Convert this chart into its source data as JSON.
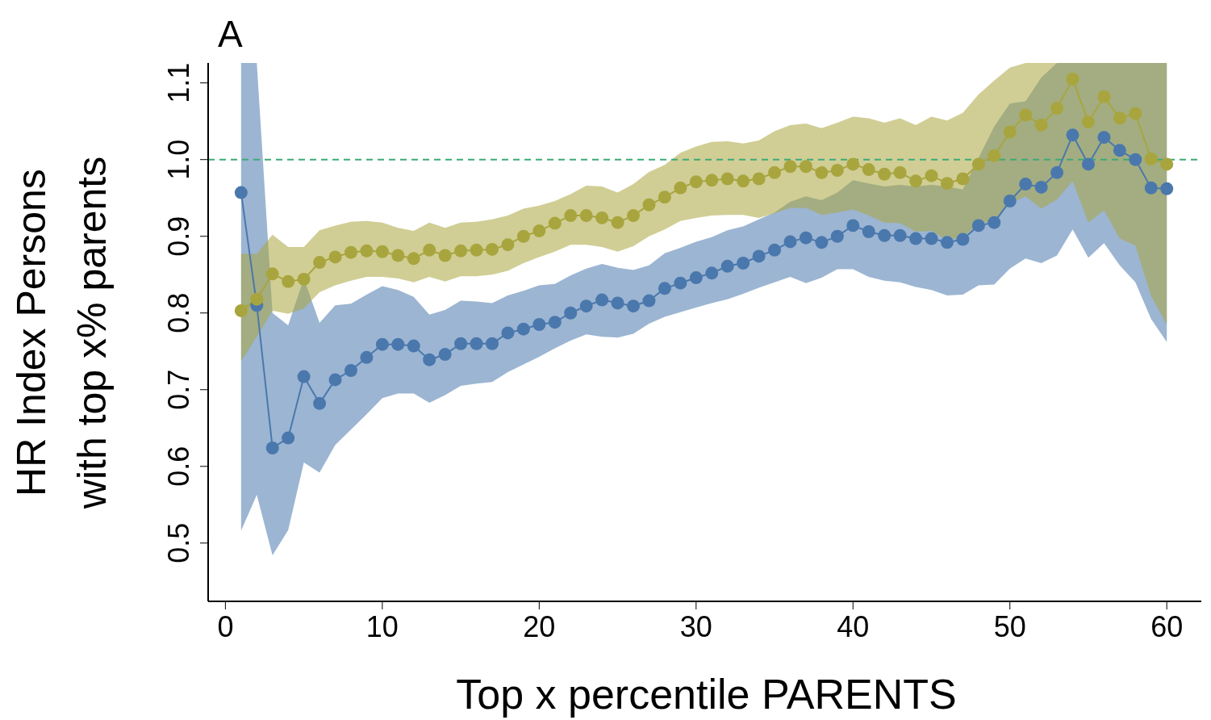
{
  "chart_data": {
    "type": "line",
    "title": "A",
    "xlabel": "Top x percentile PARENTS",
    "ylabel": "HR Index Persons\nwith top x% parents",
    "x": [
      1,
      2,
      3,
      4,
      5,
      6,
      7,
      8,
      9,
      10,
      11,
      12,
      13,
      14,
      15,
      16,
      17,
      18,
      19,
      20,
      21,
      22,
      23,
      24,
      25,
      26,
      27,
      28,
      29,
      30,
      31,
      32,
      33,
      34,
      35,
      36,
      37,
      38,
      39,
      40,
      41,
      42,
      43,
      44,
      45,
      46,
      47,
      48,
      49,
      50,
      51,
      52,
      53,
      54,
      55,
      56,
      57,
      58,
      59,
      60
    ],
    "series": [
      {
        "color": "#4a78ad",
        "values": [
          0.957,
          0.81,
          0.624,
          0.637,
          0.717,
          0.682,
          0.713,
          0.725,
          0.742,
          0.759,
          0.759,
          0.757,
          0.739,
          0.746,
          0.76,
          0.76,
          0.76,
          0.774,
          0.779,
          0.785,
          0.788,
          0.8,
          0.809,
          0.817,
          0.813,
          0.809,
          0.816,
          0.832,
          0.839,
          0.846,
          0.852,
          0.861,
          0.865,
          0.874,
          0.882,
          0.893,
          0.898,
          0.892,
          0.9,
          0.914,
          0.906,
          0.901,
          0.901,
          0.897,
          0.897,
          0.892,
          0.896,
          0.914,
          0.918,
          0.946,
          0.968,
          0.964,
          0.983,
          1.032,
          0.994,
          1.029,
          1.012,
          1.0,
          0.963,
          0.962
        ],
        "lower": [
          0.516,
          0.563,
          0.484,
          0.517,
          0.605,
          0.592,
          0.628,
          0.648,
          0.668,
          0.689,
          0.695,
          0.695,
          0.683,
          0.693,
          0.705,
          0.708,
          0.71,
          0.723,
          0.733,
          0.743,
          0.754,
          0.764,
          0.772,
          0.769,
          0.768,
          0.773,
          0.786,
          0.795,
          0.801,
          0.807,
          0.813,
          0.818,
          0.825,
          0.833,
          0.84,
          0.847,
          0.839,
          0.846,
          0.857,
          0.857,
          0.847,
          0.842,
          0.84,
          0.834,
          0.83,
          0.823,
          0.824,
          0.836,
          0.837,
          0.858,
          0.871,
          0.865,
          0.875,
          0.909,
          0.872,
          0.891,
          0.862,
          0.84,
          0.792,
          0.762
        ],
        "upper": [
          1.126,
          1.126,
          0.8,
          0.784,
          0.845,
          0.787,
          0.81,
          0.812,
          0.824,
          0.835,
          0.83,
          0.821,
          0.798,
          0.804,
          0.816,
          0.815,
          0.813,
          0.823,
          0.829,
          0.836,
          0.838,
          0.849,
          0.858,
          0.864,
          0.859,
          0.856,
          0.862,
          0.878,
          0.885,
          0.893,
          0.899,
          0.908,
          0.913,
          0.922,
          0.931,
          0.945,
          0.952,
          0.947,
          0.957,
          0.973,
          0.969,
          0.965,
          0.967,
          0.965,
          0.967,
          0.965,
          0.961,
          1.002,
          1.043,
          1.073,
          1.076,
          1.107,
          1.126,
          1.126,
          1.126,
          1.126,
          1.126,
          1.126,
          1.126,
          1.126
        ]
      },
      {
        "color": "#a9a53e",
        "values": [
          0.803,
          0.818,
          0.851,
          0.841,
          0.844,
          0.866,
          0.873,
          0.879,
          0.881,
          0.88,
          0.875,
          0.871,
          0.882,
          0.875,
          0.881,
          0.882,
          0.883,
          0.889,
          0.9,
          0.907,
          0.917,
          0.927,
          0.927,
          0.924,
          0.918,
          0.927,
          0.941,
          0.951,
          0.963,
          0.971,
          0.973,
          0.975,
          0.972,
          0.975,
          0.983,
          0.991,
          0.991,
          0.983,
          0.986,
          0.994,
          0.987,
          0.981,
          0.983,
          0.972,
          0.979,
          0.969,
          0.975,
          0.994,
          1.005,
          1.036,
          1.058,
          1.045,
          1.067,
          1.105,
          1.049,
          1.082,
          1.054,
          1.06,
          1.001,
          0.994
        ],
        "lower": [
          0.737,
          0.769,
          0.803,
          0.799,
          0.806,
          0.827,
          0.836,
          0.842,
          0.847,
          0.847,
          0.845,
          0.84,
          0.847,
          0.841,
          0.848,
          0.848,
          0.85,
          0.855,
          0.865,
          0.873,
          0.88,
          0.889,
          0.889,
          0.886,
          0.88,
          0.887,
          0.9,
          0.909,
          0.92,
          0.924,
          0.927,
          0.928,
          0.928,
          0.924,
          0.93,
          0.937,
          0.937,
          0.928,
          0.931,
          0.935,
          0.927,
          0.918,
          0.917,
          0.906,
          0.907,
          0.895,
          0.899,
          0.916,
          0.92,
          0.943,
          0.952,
          0.936,
          0.948,
          0.972,
          0.918,
          0.934,
          0.897,
          0.888,
          0.822,
          0.785
        ],
        "upper": [
          0.877,
          0.877,
          0.902,
          0.886,
          0.886,
          0.908,
          0.914,
          0.919,
          0.92,
          0.918,
          0.911,
          0.907,
          0.918,
          0.911,
          0.918,
          0.919,
          0.922,
          0.927,
          0.936,
          0.94,
          0.946,
          0.955,
          0.966,
          0.965,
          0.957,
          0.968,
          0.984,
          0.993,
          1.009,
          1.017,
          1.023,
          1.024,
          1.021,
          1.025,
          1.037,
          1.045,
          1.047,
          1.041,
          1.048,
          1.056,
          1.054,
          1.048,
          1.054,
          1.045,
          1.056,
          1.051,
          1.061,
          1.085,
          1.103,
          1.12,
          1.126,
          1.126,
          1.126,
          1.126,
          1.126,
          1.126,
          1.126,
          1.126,
          1.126,
          1.126
        ]
      }
    ],
    "xlim": [
      -1.1,
      62.2
    ],
    "xticks": [
      0,
      10,
      20,
      30,
      40,
      50,
      60
    ],
    "ylim": [
      0.424,
      1.126
    ],
    "yticks": [
      0.5,
      0.6,
      0.7,
      0.8,
      0.9,
      {
        "value": 1,
        "label": "1.0"
      },
      1.1
    ],
    "ref_lines": [
      {
        "axis": "y",
        "value": 1,
        "color": "#3daa78",
        "line_style": "dashed"
      }
    ],
    "grid": false,
    "legend": false,
    "marker": "circle",
    "line_style": "solid"
  }
}
